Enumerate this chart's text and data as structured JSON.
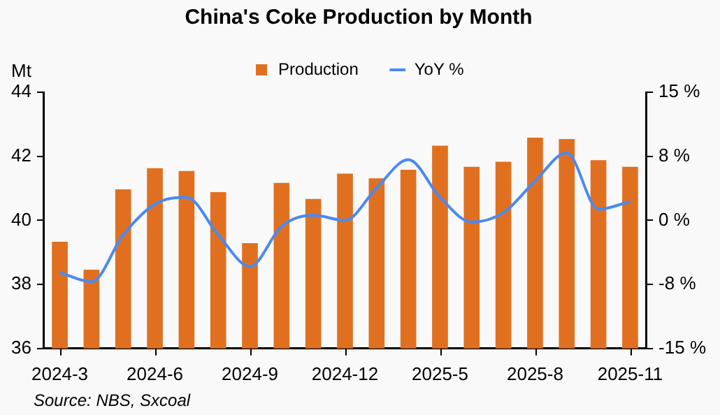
{
  "chart_data": {
    "type": "bar",
    "title": "China's Coke Production by Month",
    "ylabel": "Mt",
    "categories": [
      "2024-3",
      null,
      null,
      "2024-6",
      null,
      null,
      "2024-9",
      null,
      null,
      "2024-12",
      null,
      null,
      "2025-5",
      null,
      null,
      "2025-8",
      null,
      null,
      "2025-11"
    ],
    "series": [
      {
        "name": "Production",
        "color": "#e07020",
        "values": [
          39.33,
          38.46,
          40.97,
          41.63,
          41.54,
          40.88,
          39.29,
          41.17,
          40.67,
          41.46,
          41.31,
          41.58,
          42.33,
          41.67,
          41.83,
          42.58,
          42.54,
          41.88,
          41.67
        ]
      },
      {
        "name": "YoY %",
        "type": "line",
        "axis": "y2",
        "color": "#4a8af0",
        "values": [
          -6.1,
          -7.2,
          -1.7,
          1.9,
          2.7,
          -1.7,
          -5.4,
          -0.7,
          0.6,
          0,
          3.8,
          7.1,
          2.7,
          -0.2,
          0.9,
          4.6,
          7.9,
          1.3,
          2.2
        ]
      }
    ],
    "ylim": [
      36,
      44
    ],
    "yticks": [
      36,
      38,
      40,
      42,
      44
    ],
    "y2lim": [
      -15,
      15
    ],
    "y2ticks": [
      {
        "value": -15,
        "label": "-15 %"
      },
      {
        "value": -7.5,
        "label": "-8 %"
      },
      {
        "value": 0,
        "label": "0 %"
      },
      {
        "value": 7.5,
        "label": "8 %"
      },
      {
        "value": 15,
        "label": "15 %"
      }
    ],
    "grid": false,
    "legend": "top",
    "marker": "none",
    "line_style": "solid",
    "annotations": [
      "Source: NBS, Sxcoal"
    ]
  }
}
